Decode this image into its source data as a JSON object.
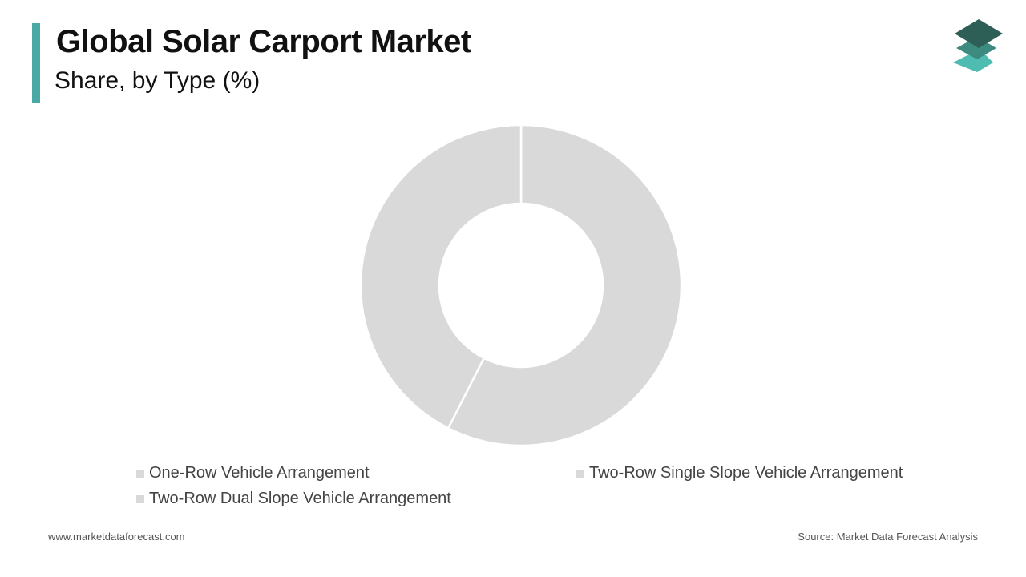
{
  "header": {
    "title": "Global Solar Carport Market",
    "subtitle": "Share, by Type (%)"
  },
  "logo": {
    "icon": "stacked-layers-logo",
    "colors": [
      "#2e5f56",
      "#3c8a80",
      "#4fbcb2"
    ]
  },
  "colors": {
    "accent": "#4aa9a5",
    "slice": "#d9d9d9",
    "legend_swatch": "#d9d9d9"
  },
  "chart_data": {
    "type": "pie",
    "donut": true,
    "categories": [
      "One-Row Vehicle Arrangement",
      "Two-Row Single Slope Vehicle Arrangement",
      "Two-Row Dual Slope Vehicle Arrangement"
    ],
    "values": [
      57.5,
      42.5,
      0
    ],
    "legend_position": "bottom"
  },
  "footer": {
    "website": "www.marketdataforecast.com",
    "source": "Source: Market Data Forecast Analysis"
  }
}
